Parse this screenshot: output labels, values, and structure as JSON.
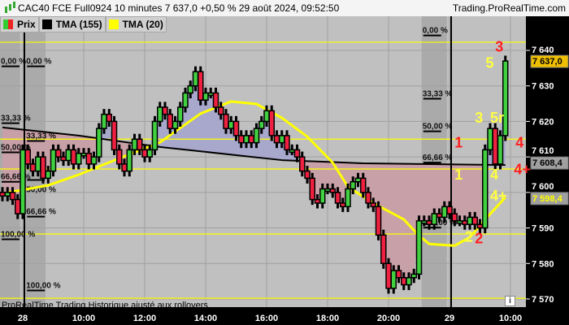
{
  "header": {
    "title": "CAC40 FCE Full0924 10 minutes 7 637,0 +0,50 % 29 août 2024, 09:52:50",
    "site": "Trading.ProRealTime.com",
    "icon": "candlestick-icon"
  },
  "legend": [
    {
      "label": "Prix",
      "color": "#3c3",
      "color2": "#e22"
    },
    {
      "label": "TMA (155)",
      "color": "#000000"
    },
    {
      "label": "TMA (20)",
      "color": "#ffff00"
    }
  ],
  "footer": {
    "text": "ProRealTime Trading Historique ajusté aux rollovers",
    "info_icon": "i"
  },
  "chart_data": {
    "type": "candlestick",
    "bar_interval": "10 minutes",
    "ylim": [
      7566,
      7648
    ],
    "y_ticks": [
      {
        "v": 7640,
        "label": "7 640"
      },
      {
        "v": 7630,
        "label": "7 630"
      },
      {
        "v": 7620,
        "label": "7 620"
      },
      {
        "v": 7610,
        "label": "7 610"
      },
      {
        "v": 7600,
        "label": "7 600"
      },
      {
        "v": 7590,
        "label": "7 590"
      },
      {
        "v": 7580,
        "label": "7 580"
      },
      {
        "v": 7570,
        "label": "7 570"
      }
    ],
    "x_ticks": [
      {
        "t": "28 08:00",
        "label": "28"
      },
      {
        "t": "28 10:00",
        "label": "10:00"
      },
      {
        "t": "28 12:00",
        "label": "12:00"
      },
      {
        "t": "28 14:00",
        "label": "14:00"
      },
      {
        "t": "28 16:00",
        "label": "16:00"
      },
      {
        "t": "28 18:00",
        "label": "18:00"
      },
      {
        "t": "28 20:00",
        "label": "20:00"
      },
      {
        "t": "29 08:00",
        "label": "29"
      },
      {
        "t": "29 10:00",
        "label": "10:00"
      }
    ],
    "day_separators": [
      "28 08:00",
      "29 08:00"
    ],
    "closes": [
      7599,
      7600,
      7598,
      7594,
      7612,
      7608,
      7606,
      7610,
      7604,
      7606,
      7612,
      7610,
      7609,
      7612,
      7608,
      7611,
      7611,
      7608,
      7610,
      7618,
      7622,
      7620,
      7612,
      7608,
      7606,
      7612,
      7615,
      7612,
      7610,
      7612,
      7620,
      7624,
      7622,
      7618,
      7620,
      7624,
      7628,
      7630,
      7634,
      7626,
      7628,
      7628,
      7624,
      7622,
      7618,
      7620,
      7616,
      7614,
      7616,
      7614,
      7618,
      7620,
      7623,
      7616,
      7614,
      7616,
      7612,
      7612,
      7610,
      7606,
      7604,
      7598,
      7597,
      7601,
      7601,
      7600,
      7597,
      7596,
      7601,
      7603,
      7604,
      7600,
      7597,
      7596,
      7588,
      7580,
      7573,
      7578,
      7576,
      7574,
      7576,
      7577,
      7592,
      7592,
      7591,
      7594,
      7593,
      7596,
      7594,
      7592,
      7592,
      7591,
      7593,
      7591,
      7590,
      7612,
      7618,
      7608,
      7616,
      7637
    ],
    "series": [
      {
        "name": "TMA (155)",
        "color": "#000000",
        "points": [
          [
            "27 21:20",
            7618.3
          ],
          [
            "28 09:50",
            7616
          ],
          [
            "28 12:30",
            7612.8
          ],
          [
            "28 16:30",
            7609.1
          ],
          [
            "28 19:10",
            7608.2
          ],
          [
            "29 09:50",
            7607.7
          ]
        ]
      },
      {
        "name": "TMA (20)",
        "color": "#ffff00",
        "points": [
          [
            "27 21:20",
            7599.7
          ],
          [
            "28 08:50",
            7602
          ],
          [
            "28 09:50",
            7605
          ],
          [
            "28 11:10",
            7609.6
          ],
          [
            "28 12:30",
            7614.1
          ],
          [
            "28 13:50",
            7622.2
          ],
          [
            "28 14:50",
            7625.6
          ],
          [
            "28 15:40",
            7624.9
          ],
          [
            "28 16:30",
            7621
          ],
          [
            "28 17:20",
            7615.7
          ],
          [
            "28 18:10",
            7608.4
          ],
          [
            "28 18:40",
            7601.6
          ],
          [
            "28 19:30",
            7597
          ],
          [
            "28 20:30",
            7592.4
          ],
          [
            "28 21:00",
            7587.8
          ],
          [
            "28 21:20",
            7585.5
          ],
          [
            "29 08:10",
            7585
          ],
          [
            "29 08:40",
            7587.4
          ],
          [
            "29 09:10",
            7592.4
          ],
          [
            "29 09:50",
            7598.6
          ]
        ]
      }
    ],
    "horizontal_lines": [
      7642.3,
      7615,
      7606.6,
      7588.3,
      7570.2
    ],
    "fibo_boxes": [
      {
        "from": "27 21:20",
        "to": "27 21:50",
        "levels": [
          {
            "v": 7635.5,
            "label": "0,00 %"
          },
          {
            "v": 7619.5,
            "label": "33,33 %"
          },
          {
            "v": 7611.3,
            "label": "50,00 %"
          },
          {
            "v": 7603,
            "label": "66,66 %"
          },
          {
            "v": 7586.8,
            "label": "100,00 %"
          }
        ]
      },
      {
        "from": "28 08:10",
        "to": "28 08:40",
        "levels": [
          {
            "v": 7635.5,
            "label": "0,00 %"
          },
          {
            "v": 7614.5,
            "label": "33,33 %"
          },
          {
            "v": 7603.5,
            "label": "50,00 %"
          },
          {
            "v": 7593.2,
            "label": "66,66 %"
          },
          {
            "v": 7572.4,
            "label": "100,00 %"
          }
        ]
      },
      {
        "from": "28 21:10",
        "to": "28 21:50",
        "levels": [
          {
            "v": 7644.2,
            "label": "0,00 %"
          },
          {
            "v": 7626.4,
            "label": "33,33 %"
          },
          {
            "v": 7617.2,
            "label": "50,00 %"
          },
          {
            "v": 7608.4,
            "label": "66,66 %"
          },
          {
            "v": 7590.1,
            "label": "100,00 %"
          }
        ]
      }
    ],
    "annotations": [
      {
        "text": "3",
        "color": "#ff2020",
        "t": "29 09:30",
        "v": 7641
      },
      {
        "text": "5",
        "color": "#ffff40",
        "t": "29 09:40",
        "v": 7636.5
      },
      {
        "text": "3",
        "color": "#ffff40",
        "t": "29 08:50",
        "v": 7621
      },
      {
        "text": "5r",
        "color": "#ffff40",
        "t": "29 09:20",
        "v": 7621
      },
      {
        "text": "1",
        "color": "#ff2020",
        "t": "29 08:10",
        "v": 7614
      },
      {
        "text": "4",
        "color": "#ff2020",
        "t": "29 10:10",
        "v": 7614
      },
      {
        "text": "1",
        "color": "#ffff40",
        "t": "29 08:10",
        "v": 7605
      },
      {
        "text": "4",
        "color": "#ffff40",
        "t": "29 09:20",
        "v": 7605
      },
      {
        "text": "4+",
        "color": "#ff2020",
        "t": "29 10:10",
        "v": 7606.5
      },
      {
        "text": "4+",
        "color": "#ffff40",
        "t": "29 09:20",
        "v": 7599
      },
      {
        "text": "2",
        "color": "#ffff40",
        "t": "29 08:30",
        "v": 7587.5
      },
      {
        "text": "2",
        "color": "#ff2020",
        "t": "29 08:50",
        "v": 7587
      }
    ],
    "price_badges": [
      {
        "v": 7637.0,
        "label": "7 637,0",
        "bg": "#f0c000",
        "fg": "#000000"
      },
      {
        "v": 7608.4,
        "label": "7 608,4",
        "bg": "#a0a0a0",
        "fg": "#000000"
      },
      {
        "v": 7598.4,
        "label": "7 598,4",
        "bg": "#a0a0a0",
        "fg": "#ffff00"
      }
    ],
    "colors": {
      "up": "#40d040",
      "down": "#f02040",
      "background": "#c0c0c0",
      "above_fill": "#a8a8cc",
      "below_fill": "#c8a0a8"
    }
  }
}
